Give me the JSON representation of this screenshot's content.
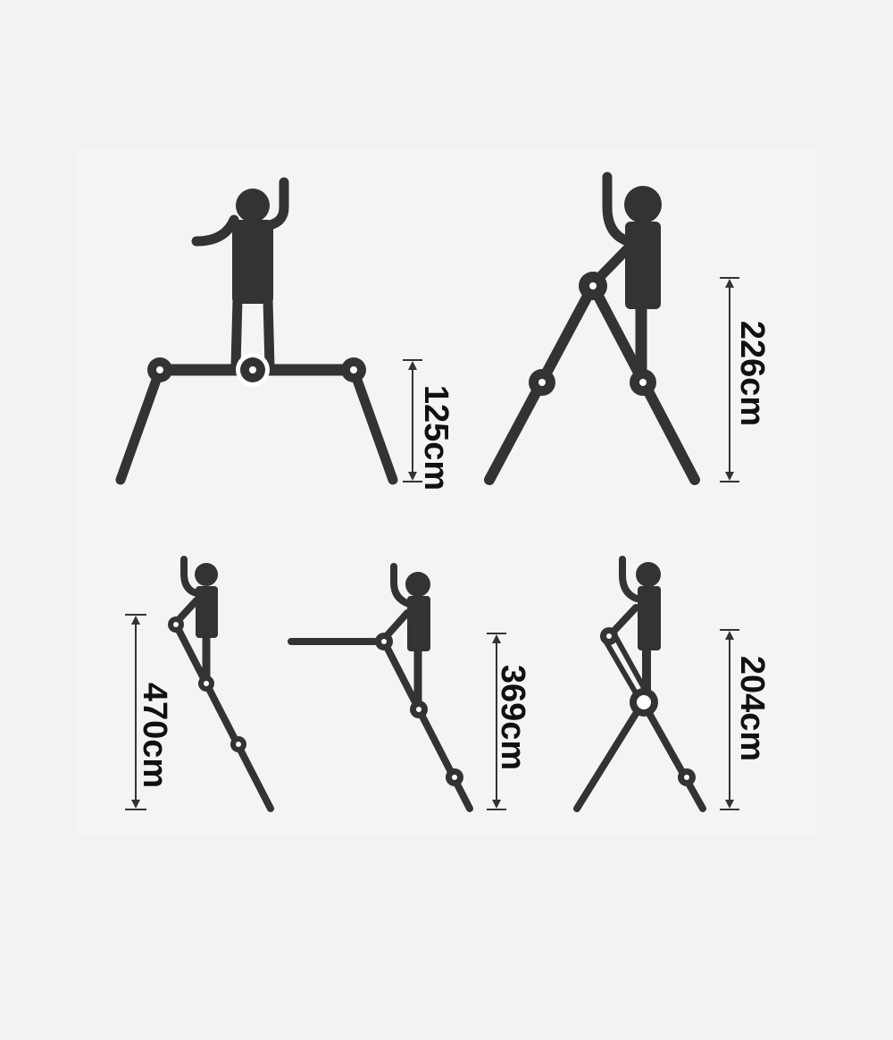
{
  "colors": {
    "background": "#f2f2f2",
    "panel": "#f4f4f4",
    "figure": "#333333",
    "joint_fill": "#ffffff",
    "dimension_line": "#333333",
    "label_text": "#111111"
  },
  "diagrams": [
    {
      "id": "platform",
      "mode": "work-platform",
      "height_label": "125cm"
    },
    {
      "id": "stepladder-tall",
      "mode": "a-frame",
      "height_label": "226cm"
    },
    {
      "id": "extension",
      "mode": "straight-ladder",
      "height_label": "470cm"
    },
    {
      "id": "leaning",
      "mode": "wall-leaning",
      "height_label": "369cm"
    },
    {
      "id": "stepladder-short",
      "mode": "a-frame-short",
      "height_label": "204cm"
    }
  ]
}
